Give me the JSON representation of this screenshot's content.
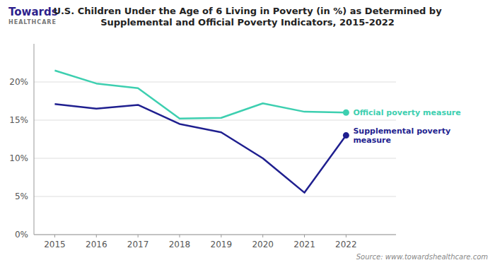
{
  "chart_data": {
    "type": "line",
    "title": "U.S. Children Under the Age of 6 Living in Poverty (in %) as Determined by\nSupplemental and Official Poverty Indicators, 2015-2022",
    "x": [
      2015,
      2016,
      2017,
      2018,
      2019,
      2020,
      2021,
      2022
    ],
    "series": [
      {
        "name": "Official poverty measure",
        "color": "#3dcfb0",
        "values": [
          21.5,
          19.8,
          19.2,
          15.2,
          15.3,
          17.2,
          16.1,
          16.0
        ]
      },
      {
        "name": "Supplemental poverty\nmeasure",
        "color": "#1f1f8f",
        "values": [
          17.1,
          16.5,
          17.0,
          14.5,
          13.4,
          10.0,
          5.5,
          13.0
        ]
      }
    ],
    "xlim": [
      2014.5,
      2023.2
    ],
    "xticks": [
      2015,
      2016,
      2017,
      2018,
      2019,
      2020,
      2021,
      2022
    ],
    "ylim": [
      0,
      25
    ],
    "yticks": [
      {
        "value": 0,
        "label": "0%"
      },
      {
        "value": 5,
        "label": "5%"
      },
      {
        "value": 10,
        "label": "10%"
      },
      {
        "value": 15,
        "label": "15%"
      },
      {
        "value": 20,
        "label": "20%"
      }
    ],
    "grid": true,
    "legend": "right",
    "annotations": [
      "Source: www.towardshealthcare.com",
      "Towards",
      "HEALTHCARE"
    ]
  }
}
